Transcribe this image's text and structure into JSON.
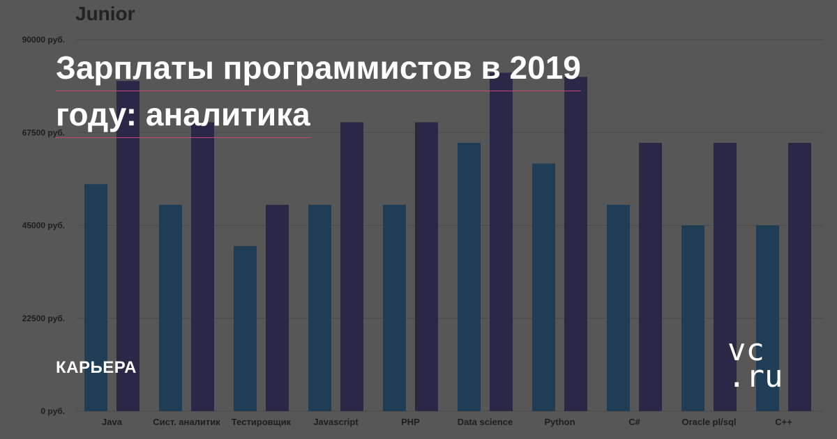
{
  "headline": {
    "line1": "Зарплаты программистов в 2019",
    "line2": "году: аналитика"
  },
  "category": "КАРЬЕРА",
  "brand": {
    "line1": "vc",
    "line2": ".ru"
  },
  "chart_data": {
    "type": "bar",
    "title": "Junior",
    "categories": [
      "Java",
      "Сист. аналитик",
      "Тестировщик",
      "Javascript",
      "PHP",
      "Data science",
      "Python",
      "C#",
      "Oracle pl/sql",
      "C++"
    ],
    "series": [
      {
        "values": [
          55000,
          50000,
          40000,
          50000,
          50000,
          65000,
          60000,
          50000,
          45000,
          45000
        ]
      },
      {
        "values": [
          80000,
          70000,
          50000,
          70000,
          70000,
          82000,
          81000,
          65000,
          65000,
          65000
        ]
      }
    ],
    "yticks": [
      "0 руб.",
      "22500 руб.",
      "45000 руб.",
      "67500 руб.",
      "90000 руб."
    ],
    "ylim": [
      0,
      90000
    ],
    "colors": [
      "#1f3d54",
      "#2a2846"
    ],
    "grid": true
  }
}
